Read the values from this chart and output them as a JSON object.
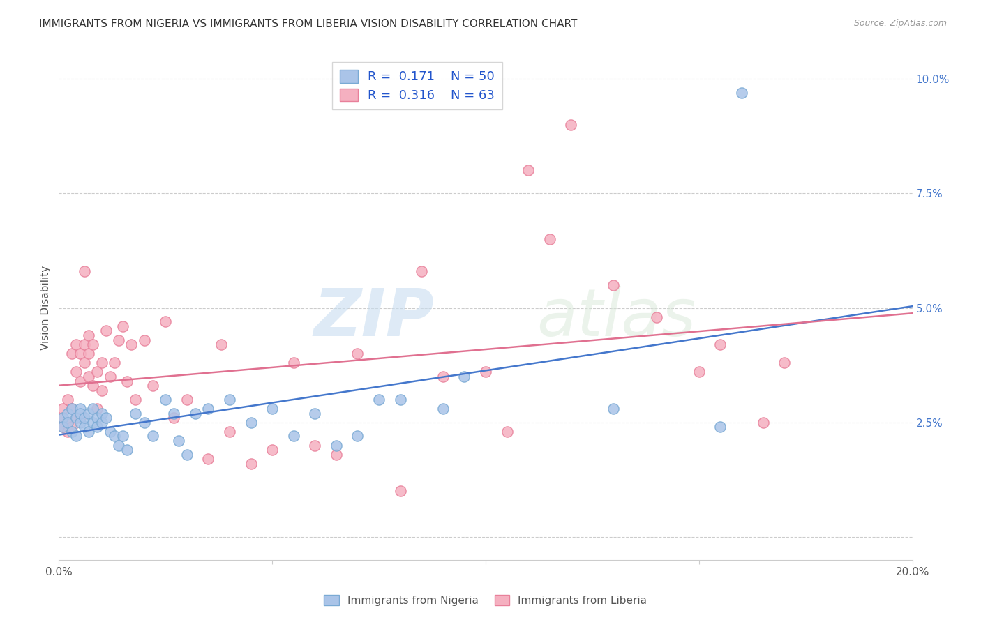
{
  "title": "IMMIGRANTS FROM NIGERIA VS IMMIGRANTS FROM LIBERIA VISION DISABILITY CORRELATION CHART",
  "source": "Source: ZipAtlas.com",
  "ylabel": "Vision Disability",
  "xlim": [
    0.0,
    0.2
  ],
  "ylim": [
    -0.005,
    0.105
  ],
  "yticks": [
    0.0,
    0.025,
    0.05,
    0.075,
    0.1
  ],
  "ytick_labels_right": [
    "",
    "2.5%",
    "5.0%",
    "7.5%",
    "10.0%"
  ],
  "xticks": [
    0.0,
    0.05,
    0.1,
    0.15,
    0.2
  ],
  "xtick_labels": [
    "0.0%",
    "",
    "",
    "",
    "20.0%"
  ],
  "nigeria_color": "#aac4e8",
  "nigeria_edge": "#7aaad4",
  "liberia_color": "#f5b0c0",
  "liberia_edge": "#e8809a",
  "nigeria_line_color": "#4477cc",
  "liberia_line_color": "#e07090",
  "nigeria_R": 0.171,
  "nigeria_N": 50,
  "liberia_R": 0.316,
  "liberia_N": 63,
  "nigeria_x": [
    0.001,
    0.001,
    0.002,
    0.002,
    0.003,
    0.003,
    0.004,
    0.004,
    0.005,
    0.005,
    0.005,
    0.006,
    0.006,
    0.007,
    0.007,
    0.008,
    0.008,
    0.009,
    0.009,
    0.01,
    0.01,
    0.011,
    0.012,
    0.013,
    0.014,
    0.015,
    0.016,
    0.018,
    0.02,
    0.022,
    0.025,
    0.027,
    0.028,
    0.03,
    0.032,
    0.035,
    0.04,
    0.045,
    0.05,
    0.055,
    0.06,
    0.065,
    0.07,
    0.075,
    0.08,
    0.09,
    0.095,
    0.13,
    0.155,
    0.16
  ],
  "nigeria_y": [
    0.026,
    0.024,
    0.027,
    0.025,
    0.028,
    0.023,
    0.026,
    0.022,
    0.025,
    0.028,
    0.027,
    0.024,
    0.026,
    0.027,
    0.023,
    0.025,
    0.028,
    0.026,
    0.024,
    0.027,
    0.025,
    0.026,
    0.023,
    0.022,
    0.02,
    0.022,
    0.019,
    0.027,
    0.025,
    0.022,
    0.03,
    0.027,
    0.021,
    0.018,
    0.027,
    0.028,
    0.03,
    0.025,
    0.028,
    0.022,
    0.027,
    0.02,
    0.022,
    0.03,
    0.03,
    0.028,
    0.035,
    0.028,
    0.024,
    0.097
  ],
  "liberia_x": [
    0.001,
    0.001,
    0.001,
    0.002,
    0.002,
    0.002,
    0.003,
    0.003,
    0.003,
    0.004,
    0.004,
    0.004,
    0.005,
    0.005,
    0.005,
    0.006,
    0.006,
    0.006,
    0.007,
    0.007,
    0.007,
    0.008,
    0.008,
    0.009,
    0.009,
    0.01,
    0.01,
    0.011,
    0.012,
    0.013,
    0.014,
    0.015,
    0.016,
    0.017,
    0.018,
    0.02,
    0.022,
    0.025,
    0.027,
    0.03,
    0.035,
    0.038,
    0.04,
    0.045,
    0.05,
    0.055,
    0.06,
    0.065,
    0.07,
    0.08,
    0.085,
    0.09,
    0.1,
    0.105,
    0.11,
    0.115,
    0.12,
    0.13,
    0.14,
    0.15,
    0.155,
    0.165,
    0.17
  ],
  "liberia_y": [
    0.026,
    0.024,
    0.028,
    0.025,
    0.03,
    0.023,
    0.028,
    0.024,
    0.04,
    0.026,
    0.042,
    0.036,
    0.04,
    0.034,
    0.026,
    0.042,
    0.038,
    0.058,
    0.04,
    0.044,
    0.035,
    0.033,
    0.042,
    0.036,
    0.028,
    0.038,
    0.032,
    0.045,
    0.035,
    0.038,
    0.043,
    0.046,
    0.034,
    0.042,
    0.03,
    0.043,
    0.033,
    0.047,
    0.026,
    0.03,
    0.017,
    0.042,
    0.023,
    0.016,
    0.019,
    0.038,
    0.02,
    0.018,
    0.04,
    0.01,
    0.058,
    0.035,
    0.036,
    0.023,
    0.08,
    0.065,
    0.09,
    0.055,
    0.048,
    0.036,
    0.042,
    0.025,
    0.038
  ],
  "watermark_zip": "ZIP",
  "watermark_atlas": "atlas",
  "background_color": "#ffffff",
  "grid_color": "#cccccc",
  "title_fontsize": 11,
  "axis_label_fontsize": 11,
  "tick_fontsize": 11,
  "legend_fontsize": 13
}
